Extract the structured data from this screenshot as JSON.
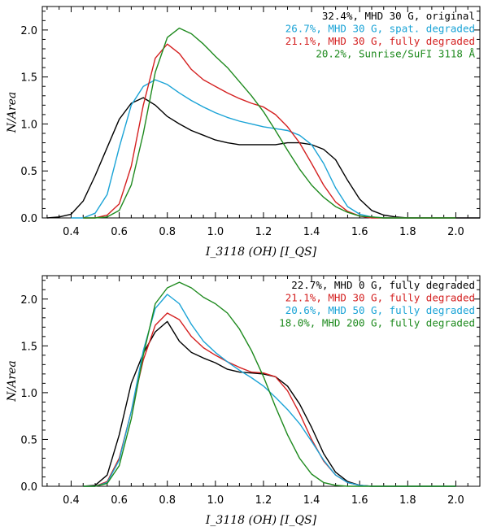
{
  "chart_data": [
    {
      "type": "line",
      "panel": "top",
      "xlabel": "I_3118 (OH) [I_QS]",
      "ylabel": "N/Area",
      "xlim": [
        0.28,
        2.1
      ],
      "ylim": [
        0,
        2.25
      ],
      "xticks": [
        0.4,
        0.6,
        0.8,
        1.0,
        1.2,
        1.4,
        1.6,
        1.8,
        2.0
      ],
      "xtick_labels": [
        "0.4",
        "0.6",
        "0.8",
        "1.0",
        "1.2",
        "1.4",
        "1.6",
        "1.8",
        "2.0"
      ],
      "yticks": [
        0.0,
        0.5,
        1.0,
        1.5,
        2.0
      ],
      "ytick_labels": [
        "0.0",
        "0.5",
        "1.0",
        "1.5",
        "2.0"
      ],
      "legend_position": "top-right",
      "series": [
        {
          "name": "32.4%, MHD 30 G, original",
          "color": "#000000",
          "x": [
            0.3,
            0.35,
            0.4,
            0.45,
            0.5,
            0.55,
            0.6,
            0.65,
            0.7,
            0.75,
            0.8,
            0.85,
            0.9,
            0.95,
            1.0,
            1.05,
            1.1,
            1.15,
            1.2,
            1.25,
            1.3,
            1.35,
            1.4,
            1.45,
            1.5,
            1.55,
            1.6,
            1.65,
            1.7,
            1.75,
            1.8,
            1.9,
            2.0,
            2.1
          ],
          "y": [
            0.0,
            0.01,
            0.04,
            0.18,
            0.45,
            0.75,
            1.05,
            1.22,
            1.28,
            1.2,
            1.08,
            1.0,
            0.93,
            0.88,
            0.83,
            0.8,
            0.78,
            0.78,
            0.78,
            0.78,
            0.8,
            0.8,
            0.78,
            0.73,
            0.62,
            0.4,
            0.2,
            0.08,
            0.03,
            0.01,
            0.0,
            0.0,
            0.0,
            0.0
          ]
        },
        {
          "name": "26.7%, MHD 30 G, spat. degraded",
          "color": "#1aa3d6",
          "x": [
            0.4,
            0.45,
            0.5,
            0.55,
            0.6,
            0.65,
            0.7,
            0.75,
            0.8,
            0.85,
            0.9,
            0.95,
            1.0,
            1.05,
            1.1,
            1.15,
            1.2,
            1.25,
            1.3,
            1.35,
            1.4,
            1.45,
            1.5,
            1.55,
            1.6,
            1.65,
            1.7,
            1.75,
            1.8,
            1.9,
            2.0
          ],
          "y": [
            0.0,
            0.0,
            0.05,
            0.25,
            0.75,
            1.2,
            1.4,
            1.47,
            1.42,
            1.33,
            1.25,
            1.18,
            1.12,
            1.07,
            1.03,
            1.0,
            0.97,
            0.95,
            0.93,
            0.88,
            0.78,
            0.58,
            0.32,
            0.12,
            0.04,
            0.01,
            0.0,
            0.0,
            0.0,
            0.0,
            0.0
          ]
        },
        {
          "name": "21.1%, MHD 30 G, fully degraded",
          "color": "#d42020",
          "x": [
            0.45,
            0.5,
            0.55,
            0.6,
            0.65,
            0.7,
            0.75,
            0.8,
            0.85,
            0.9,
            0.95,
            1.0,
            1.05,
            1.1,
            1.15,
            1.2,
            1.25,
            1.3,
            1.35,
            1.4,
            1.45,
            1.5,
            1.55,
            1.6,
            1.65,
            1.7,
            1.8,
            1.9,
            2.0
          ],
          "y": [
            0.0,
            0.0,
            0.03,
            0.15,
            0.55,
            1.2,
            1.7,
            1.85,
            1.75,
            1.58,
            1.47,
            1.4,
            1.33,
            1.27,
            1.22,
            1.18,
            1.1,
            0.97,
            0.8,
            0.58,
            0.35,
            0.17,
            0.07,
            0.02,
            0.0,
            0.0,
            0.0,
            0.0,
            0.0
          ]
        },
        {
          "name": "20.2%, Sunrise/SuFI 3118 Å",
          "color": "#1e8a1e",
          "x": [
            0.45,
            0.5,
            0.55,
            0.6,
            0.65,
            0.7,
            0.75,
            0.8,
            0.85,
            0.9,
            0.95,
            1.0,
            1.05,
            1.1,
            1.15,
            1.2,
            1.25,
            1.3,
            1.35,
            1.4,
            1.45,
            1.5,
            1.55,
            1.6,
            1.65,
            1.7,
            1.8,
            1.9,
            2.0
          ],
          "y": [
            0.0,
            0.0,
            0.01,
            0.08,
            0.35,
            0.9,
            1.55,
            1.92,
            2.02,
            1.96,
            1.85,
            1.72,
            1.6,
            1.45,
            1.3,
            1.13,
            0.93,
            0.72,
            0.52,
            0.35,
            0.22,
            0.12,
            0.06,
            0.02,
            0.01,
            0.0,
            0.0,
            0.0,
            0.0
          ]
        }
      ]
    },
    {
      "type": "line",
      "panel": "bottom",
      "xlabel": "I_3118 (OH) [I_QS]",
      "ylabel": "N/Area",
      "xlim": [
        0.28,
        2.1
      ],
      "ylim": [
        0,
        2.25
      ],
      "xticks": [
        0.4,
        0.6,
        0.8,
        1.0,
        1.2,
        1.4,
        1.6,
        1.8,
        2.0
      ],
      "xtick_labels": [
        "0.4",
        "0.6",
        "0.8",
        "1.0",
        "1.2",
        "1.4",
        "1.6",
        "1.8",
        "2.0"
      ],
      "yticks": [
        0.0,
        0.5,
        1.0,
        1.5,
        2.0
      ],
      "ytick_labels": [
        "0.0",
        "0.5",
        "1.0",
        "1.5",
        "2.0"
      ],
      "legend_position": "top-right",
      "series": [
        {
          "name": "22.7%, MHD   0 G, fully degraded",
          "color": "#000000",
          "x": [
            0.45,
            0.5,
            0.55,
            0.6,
            0.65,
            0.7,
            0.75,
            0.8,
            0.85,
            0.9,
            0.95,
            1.0,
            1.05,
            1.1,
            1.15,
            1.2,
            1.25,
            1.3,
            1.35,
            1.4,
            1.45,
            1.5,
            1.55,
            1.6,
            1.65,
            1.7,
            1.8,
            1.9,
            2.0
          ],
          "y": [
            0.0,
            0.01,
            0.12,
            0.55,
            1.1,
            1.42,
            1.65,
            1.76,
            1.55,
            1.43,
            1.37,
            1.32,
            1.25,
            1.22,
            1.21,
            1.2,
            1.17,
            1.07,
            0.88,
            0.63,
            0.35,
            0.15,
            0.05,
            0.01,
            0.0,
            0.0,
            0.0,
            0.0,
            0.0
          ]
        },
        {
          "name": "21.1%, MHD  30 G, fully degraded",
          "color": "#d42020",
          "x": [
            0.45,
            0.5,
            0.55,
            0.6,
            0.65,
            0.7,
            0.75,
            0.8,
            0.85,
            0.9,
            0.95,
            1.0,
            1.05,
            1.1,
            1.15,
            1.2,
            1.25,
            1.3,
            1.35,
            1.4,
            1.45,
            1.5,
            1.55,
            1.6,
            1.65,
            1.7,
            1.8,
            1.9,
            2.0
          ],
          "y": [
            0.0,
            0.0,
            0.05,
            0.3,
            0.8,
            1.35,
            1.72,
            1.85,
            1.78,
            1.6,
            1.48,
            1.4,
            1.33,
            1.27,
            1.22,
            1.21,
            1.17,
            1.02,
            0.78,
            0.5,
            0.27,
            0.12,
            0.04,
            0.01,
            0.0,
            0.0,
            0.0,
            0.0,
            0.0
          ]
        },
        {
          "name": "20.6%, MHD  50 G, fully degraded",
          "color": "#1aa3d6",
          "x": [
            0.45,
            0.5,
            0.55,
            0.6,
            0.65,
            0.7,
            0.75,
            0.8,
            0.85,
            0.9,
            0.95,
            1.0,
            1.05,
            1.1,
            1.15,
            1.2,
            1.25,
            1.3,
            1.35,
            1.4,
            1.45,
            1.5,
            1.55,
            1.6,
            1.65,
            1.7,
            1.8,
            1.9,
            2.0
          ],
          "y": [
            0.0,
            0.0,
            0.04,
            0.28,
            0.8,
            1.45,
            1.9,
            2.05,
            1.95,
            1.73,
            1.55,
            1.43,
            1.33,
            1.24,
            1.16,
            1.07,
            0.95,
            0.82,
            0.67,
            0.48,
            0.28,
            0.12,
            0.04,
            0.01,
            0.0,
            0.0,
            0.0,
            0.0,
            0.0
          ]
        },
        {
          "name": "18.0%, MHD 200 G, fully degraded",
          "color": "#1e8a1e",
          "x": [
            0.45,
            0.5,
            0.55,
            0.6,
            0.65,
            0.7,
            0.75,
            0.8,
            0.85,
            0.9,
            0.95,
            1.0,
            1.05,
            1.1,
            1.15,
            1.2,
            1.25,
            1.3,
            1.35,
            1.4,
            1.45,
            1.5,
            1.55,
            1.6,
            1.65,
            1.7,
            1.8,
            1.9,
            2.0
          ],
          "y": [
            0.0,
            0.0,
            0.03,
            0.22,
            0.72,
            1.4,
            1.95,
            2.12,
            2.18,
            2.12,
            2.02,
            1.95,
            1.85,
            1.68,
            1.45,
            1.17,
            0.85,
            0.55,
            0.3,
            0.13,
            0.04,
            0.01,
            0.0,
            0.0,
            0.0,
            0.0,
            0.0,
            0.0,
            0.0
          ]
        }
      ]
    }
  ]
}
